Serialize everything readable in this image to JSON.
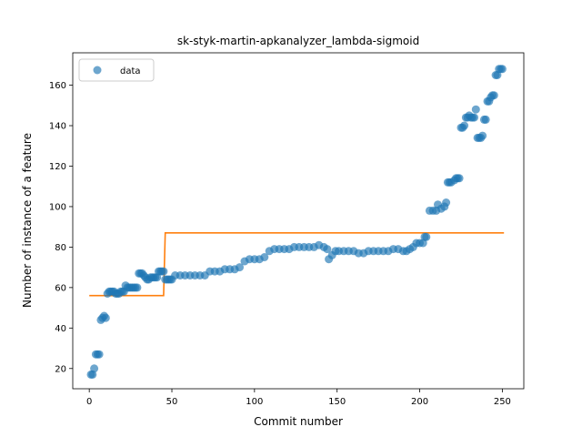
{
  "chart_data": {
    "type": "scatter",
    "title": "sk-styk-martin-apkanalyzer_lambda-sigmoid",
    "xlabel": "Commit number",
    "ylabel": "Number of instance of a feature",
    "xlim": [
      -10,
      263
    ],
    "ylim": [
      10,
      176
    ],
    "xticks": [
      0,
      50,
      100,
      150,
      200,
      250
    ],
    "yticks": [
      20,
      40,
      60,
      80,
      100,
      120,
      140,
      160
    ],
    "grid": false,
    "legend": {
      "position": "top-left",
      "entries": [
        "data"
      ]
    },
    "colors": {
      "data": "#1f77b4",
      "fit": "#ff7f0e"
    },
    "series": [
      {
        "name": "data",
        "style": "markers",
        "points": [
          [
            1,
            17
          ],
          [
            2,
            17
          ],
          [
            3,
            20
          ],
          [
            4,
            27
          ],
          [
            5,
            27
          ],
          [
            6,
            27
          ],
          [
            7,
            44
          ],
          [
            8,
            45
          ],
          [
            9,
            46
          ],
          [
            10,
            45
          ],
          [
            11,
            57
          ],
          [
            12,
            58
          ],
          [
            13,
            58
          ],
          [
            14,
            58
          ],
          [
            15,
            58
          ],
          [
            16,
            57
          ],
          [
            17,
            57
          ],
          [
            18,
            57
          ],
          [
            19,
            58
          ],
          [
            20,
            58
          ],
          [
            21,
            58
          ],
          [
            22,
            61
          ],
          [
            23,
            60
          ],
          [
            24,
            60
          ],
          [
            25,
            60
          ],
          [
            26,
            60
          ],
          [
            27,
            60
          ],
          [
            28,
            60
          ],
          [
            29,
            60
          ],
          [
            30,
            67
          ],
          [
            31,
            67
          ],
          [
            32,
            67
          ],
          [
            33,
            66
          ],
          [
            34,
            65
          ],
          [
            35,
            64
          ],
          [
            36,
            64
          ],
          [
            37,
            65
          ],
          [
            38,
            65
          ],
          [
            39,
            65
          ],
          [
            40,
            65
          ],
          [
            41,
            65
          ],
          [
            42,
            68
          ],
          [
            43,
            68
          ],
          [
            44,
            68
          ],
          [
            45,
            68
          ],
          [
            46,
            64
          ],
          [
            47,
            64
          ],
          [
            48,
            64
          ],
          [
            49,
            64
          ],
          [
            50,
            64
          ],
          [
            52,
            66
          ],
          [
            55,
            66
          ],
          [
            58,
            66
          ],
          [
            61,
            66
          ],
          [
            64,
            66
          ],
          [
            67,
            66
          ],
          [
            70,
            66
          ],
          [
            73,
            68
          ],
          [
            76,
            68
          ],
          [
            79,
            68
          ],
          [
            82,
            69
          ],
          [
            85,
            69
          ],
          [
            88,
            69
          ],
          [
            91,
            70
          ],
          [
            94,
            73
          ],
          [
            97,
            74
          ],
          [
            100,
            74
          ],
          [
            103,
            74
          ],
          [
            106,
            75
          ],
          [
            109,
            78
          ],
          [
            112,
            79
          ],
          [
            115,
            79
          ],
          [
            118,
            79
          ],
          [
            121,
            79
          ],
          [
            124,
            80
          ],
          [
            127,
            80
          ],
          [
            130,
            80
          ],
          [
            133,
            80
          ],
          [
            136,
            80
          ],
          [
            139,
            81
          ],
          [
            142,
            80
          ],
          [
            144,
            79
          ],
          [
            145,
            74
          ],
          [
            147,
            76
          ],
          [
            149,
            78
          ],
          [
            151,
            78
          ],
          [
            154,
            78
          ],
          [
            157,
            78
          ],
          [
            160,
            78
          ],
          [
            163,
            77
          ],
          [
            166,
            77
          ],
          [
            169,
            78
          ],
          [
            172,
            78
          ],
          [
            175,
            78
          ],
          [
            178,
            78
          ],
          [
            181,
            78
          ],
          [
            184,
            79
          ],
          [
            187,
            79
          ],
          [
            190,
            78
          ],
          [
            192,
            78
          ],
          [
            194,
            79
          ],
          [
            196,
            80
          ],
          [
            198,
            82
          ],
          [
            200,
            82
          ],
          [
            202,
            82
          ],
          [
            203,
            85
          ],
          [
            204,
            85
          ],
          [
            206,
            98
          ],
          [
            208,
            98
          ],
          [
            210,
            98
          ],
          [
            211,
            101
          ],
          [
            213,
            99
          ],
          [
            215,
            100
          ],
          [
            216,
            102
          ],
          [
            217,
            112
          ],
          [
            218,
            112
          ],
          [
            219,
            112
          ],
          [
            221,
            113
          ],
          [
            222,
            114
          ],
          [
            223,
            114
          ],
          [
            224,
            114
          ],
          [
            225,
            139
          ],
          [
            226,
            139
          ],
          [
            227,
            140
          ],
          [
            228,
            144
          ],
          [
            229,
            144
          ],
          [
            230,
            145
          ],
          [
            231,
            144
          ],
          [
            232,
            144
          ],
          [
            233,
            144
          ],
          [
            234,
            148
          ],
          [
            235,
            134
          ],
          [
            236,
            134
          ],
          [
            237,
            134
          ],
          [
            238,
            135
          ],
          [
            239,
            143
          ],
          [
            240,
            143
          ],
          [
            241,
            152
          ],
          [
            242,
            152
          ],
          [
            243,
            154
          ],
          [
            244,
            155
          ],
          [
            245,
            155
          ],
          [
            246,
            165
          ],
          [
            247,
            165
          ],
          [
            248,
            168
          ],
          [
            249,
            168
          ],
          [
            250,
            168
          ]
        ]
      },
      {
        "name": "",
        "style": "line",
        "points": [
          [
            0,
            56
          ],
          [
            45,
            56
          ],
          [
            46,
            87
          ],
          [
            251,
            87
          ]
        ]
      }
    ]
  }
}
